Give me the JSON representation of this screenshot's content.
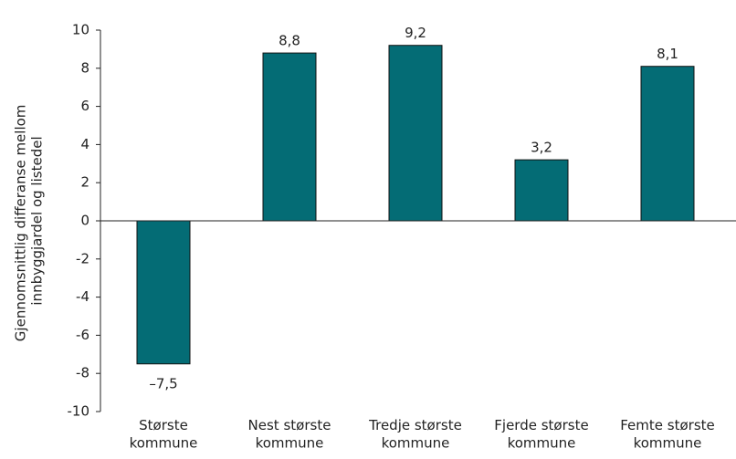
{
  "chart_data": {
    "type": "bar",
    "ylabel": [
      "Gjennomsnittlig differanse mellom",
      "innbyggjardel og listedel"
    ],
    "categories": [
      "Største kommune",
      "Nest største kommune",
      "Tredje største kommune",
      "Fjerde største kommune",
      "Femte største kommune"
    ],
    "values": [
      -7.5,
      8.8,
      9.2,
      3.2,
      8.1
    ],
    "value_labels": [
      "–7,5",
      "8,8",
      "9,2",
      "3,2",
      "8,1"
    ],
    "color": "#046c75",
    "ylim": [
      -10,
      10
    ],
    "yticks": [
      -10,
      -8,
      -6,
      -4,
      -2,
      0,
      2,
      4,
      6,
      8,
      10
    ]
  }
}
